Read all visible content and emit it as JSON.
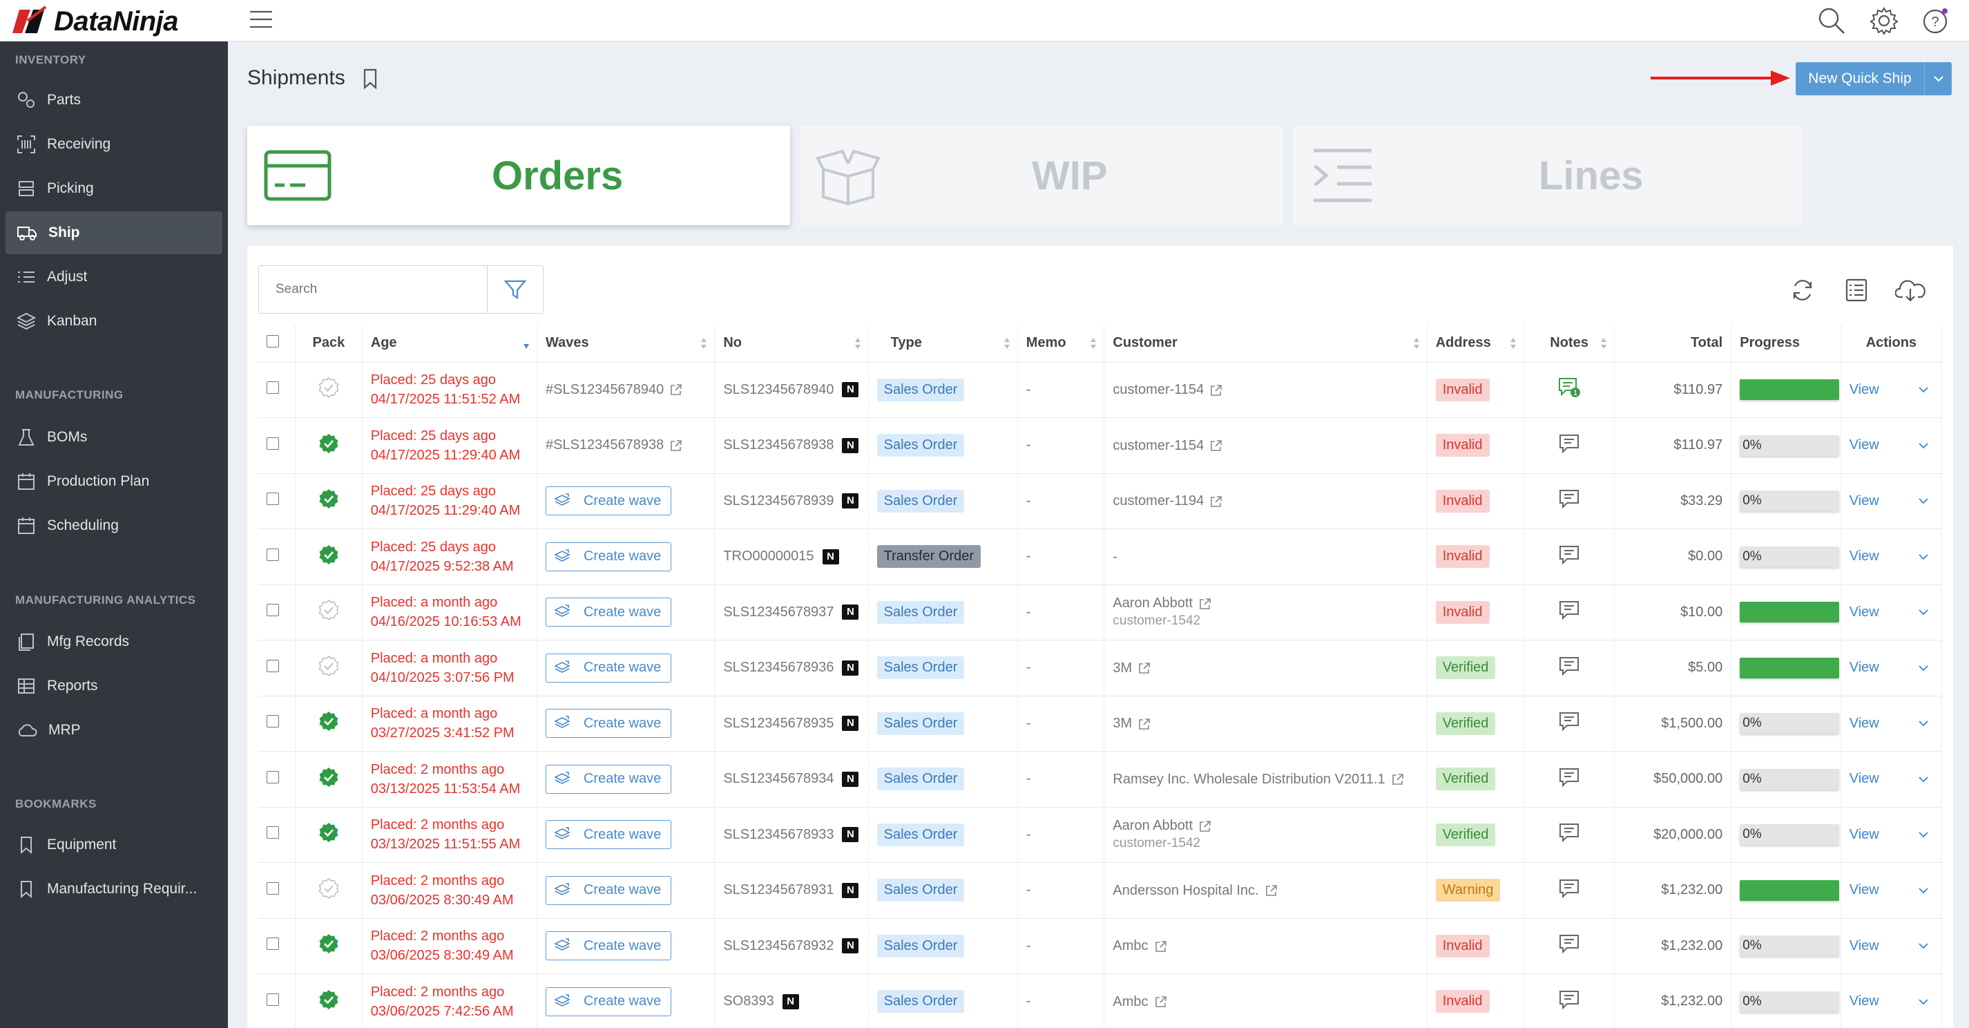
{
  "app": {
    "brand": "DataNinja"
  },
  "header": {
    "title": "Shipments",
    "new_quick_ship_label": "New Quick Ship"
  },
  "sidebar": {
    "sections": [
      {
        "title": "INVENTORY",
        "items": [
          {
            "label": "Parts",
            "icon": "parts-icon"
          },
          {
            "label": "Receiving",
            "icon": "barcode-icon"
          },
          {
            "label": "Picking",
            "icon": "picking-icon"
          },
          {
            "label": "Ship",
            "icon": "truck-icon",
            "active": true
          },
          {
            "label": "Adjust",
            "icon": "checklist-icon"
          },
          {
            "label": "Kanban",
            "icon": "layers-icon"
          }
        ]
      },
      {
        "title": "MANUFACTURING",
        "items": [
          {
            "label": "BOMs",
            "icon": "flask-icon"
          },
          {
            "label": "Production Plan",
            "icon": "calendar-icon"
          },
          {
            "label": "Scheduling",
            "icon": "calendar-icon"
          }
        ]
      },
      {
        "title": "MANUFACTURING ANALYTICS",
        "items": [
          {
            "label": "Mfg Records",
            "icon": "records-icon"
          },
          {
            "label": "Reports",
            "icon": "table-icon"
          },
          {
            "label": "MRP",
            "icon": "cloud-icon"
          }
        ]
      },
      {
        "title": "BOOKMARKS",
        "items": [
          {
            "label": "Equipment",
            "icon": "bookmark-icon"
          },
          {
            "label": "Manufacturing Requir...",
            "icon": "bookmark-icon"
          }
        ]
      }
    ]
  },
  "tabs": [
    {
      "label": "Orders",
      "active": true
    },
    {
      "label": "WIP",
      "active": false
    },
    {
      "label": "Lines",
      "active": false
    }
  ],
  "search": {
    "placeholder": "Search"
  },
  "table": {
    "columns": [
      "Pack",
      "Age",
      "Waves",
      "No",
      "Type",
      "Memo",
      "Customer",
      "Address",
      "Notes",
      "Total",
      "Progress",
      "Actions"
    ],
    "create_wave_label": "Create wave",
    "view_label": "View",
    "rows": [
      {
        "packed": false,
        "age": "Placed: 25 days ago",
        "date": "04/17/2025 11:51:52 AM",
        "wave": "#SLS12345678940",
        "no": "SLS12345678940",
        "type": "Sales Order",
        "memo": "-",
        "customer": "customer-1154",
        "customer_sub": "",
        "customer_link": true,
        "address": "Invalid",
        "notes_count": "1",
        "total": "$110.97",
        "progress": 100,
        "progress_text": ""
      },
      {
        "packed": true,
        "age": "Placed: 25 days ago",
        "date": "04/17/2025 11:29:40 AM",
        "wave": "#SLS12345678938",
        "no": "SLS12345678938",
        "type": "Sales Order",
        "memo": "-",
        "customer": "customer-1154",
        "customer_sub": "",
        "customer_link": true,
        "address": "Invalid",
        "notes_count": "",
        "total": "$110.97",
        "progress": 0,
        "progress_text": "0%"
      },
      {
        "packed": true,
        "age": "Placed: 25 days ago",
        "date": "04/17/2025 11:29:40 AM",
        "wave": "",
        "no": "SLS12345678939",
        "type": "Sales Order",
        "memo": "-",
        "customer": "customer-1194",
        "customer_sub": "",
        "customer_link": true,
        "address": "Invalid",
        "notes_count": "",
        "total": "$33.29",
        "progress": 0,
        "progress_text": "0%"
      },
      {
        "packed": true,
        "age": "Placed: 25 days ago",
        "date": "04/17/2025 9:52:38 AM",
        "wave": "",
        "no": "TRO00000015",
        "type": "Transfer Order",
        "memo": "-",
        "customer": "-",
        "customer_sub": "",
        "customer_link": false,
        "address": "Invalid",
        "notes_count": "",
        "total": "$0.00",
        "progress": 0,
        "progress_text": "0%"
      },
      {
        "packed": false,
        "age": "Placed: a month ago",
        "date": "04/16/2025 10:16:53 AM",
        "wave": "",
        "no": "SLS12345678937",
        "type": "Sales Order",
        "memo": "-",
        "customer": "Aaron Abbott",
        "customer_sub": "customer-1542",
        "customer_link": true,
        "address": "Invalid",
        "notes_count": "",
        "total": "$10.00",
        "progress": 100,
        "progress_text": ""
      },
      {
        "packed": false,
        "age": "Placed: a month ago",
        "date": "04/10/2025 3:07:56 PM",
        "wave": "",
        "no": "SLS12345678936",
        "type": "Sales Order",
        "memo": "-",
        "customer": "3M",
        "customer_sub": "",
        "customer_link": true,
        "address": "Verified",
        "notes_count": "",
        "total": "$5.00",
        "progress": 100,
        "progress_text": ""
      },
      {
        "packed": true,
        "age": "Placed: a month ago",
        "date": "03/27/2025 3:41:52 PM",
        "wave": "",
        "no": "SLS12345678935",
        "type": "Sales Order",
        "memo": "-",
        "customer": "3M",
        "customer_sub": "",
        "customer_link": true,
        "address": "Verified",
        "notes_count": "",
        "total": "$1,500.00",
        "progress": 0,
        "progress_text": "0%"
      },
      {
        "packed": true,
        "age": "Placed: 2 months ago",
        "date": "03/13/2025 11:53:54 AM",
        "wave": "",
        "no": "SLS12345678934",
        "type": "Sales Order",
        "memo": "-",
        "customer": "Ramsey Inc. Wholesale Distribution V2011.1",
        "customer_sub": "",
        "customer_link": true,
        "address": "Verified",
        "notes_count": "",
        "total": "$50,000.00",
        "progress": 0,
        "progress_text": "0%"
      },
      {
        "packed": true,
        "age": "Placed: 2 months ago",
        "date": "03/13/2025 11:51:55 AM",
        "wave": "",
        "no": "SLS12345678933",
        "type": "Sales Order",
        "memo": "-",
        "customer": "Aaron Abbott",
        "customer_sub": "customer-1542",
        "customer_link": true,
        "address": "Verified",
        "notes_count": "",
        "total": "$20,000.00",
        "progress": 0,
        "progress_text": "0%"
      },
      {
        "packed": false,
        "age": "Placed: 2 months ago",
        "date": "03/06/2025 8:30:49 AM",
        "wave": "",
        "no": "SLS12345678931",
        "type": "Sales Order",
        "memo": "-",
        "customer": "Andersson Hospital Inc.",
        "customer_sub": "",
        "customer_link": true,
        "address": "Warning",
        "notes_count": "",
        "total": "$1,232.00",
        "progress": 100,
        "progress_text": ""
      },
      {
        "packed": true,
        "age": "Placed: 2 months ago",
        "date": "03/06/2025 8:30:49 AM",
        "wave": "",
        "no": "SLS12345678932",
        "type": "Sales Order",
        "memo": "-",
        "customer": "Ambc",
        "customer_sub": "",
        "customer_link": true,
        "address": "Invalid",
        "notes_count": "",
        "total": "$1,232.00",
        "progress": 0,
        "progress_text": "0%"
      },
      {
        "packed": true,
        "age": "Placed: 2 months ago",
        "date": "03/06/2025 7:42:56 AM",
        "wave": "",
        "no": "SO8393",
        "type": "Sales Order",
        "memo": "-",
        "customer": "Ambc",
        "customer_sub": "",
        "customer_link": true,
        "address": "Invalid",
        "notes_count": "",
        "total": "$1,232.00",
        "progress": 0,
        "progress_text": "0%"
      }
    ]
  },
  "colors": {
    "accent": "#5b9bd5",
    "brand_red": "#d7262b",
    "orders_green": "#3c9a47",
    "age_red": "#e8322b",
    "progress_green": "#3fab4a"
  }
}
